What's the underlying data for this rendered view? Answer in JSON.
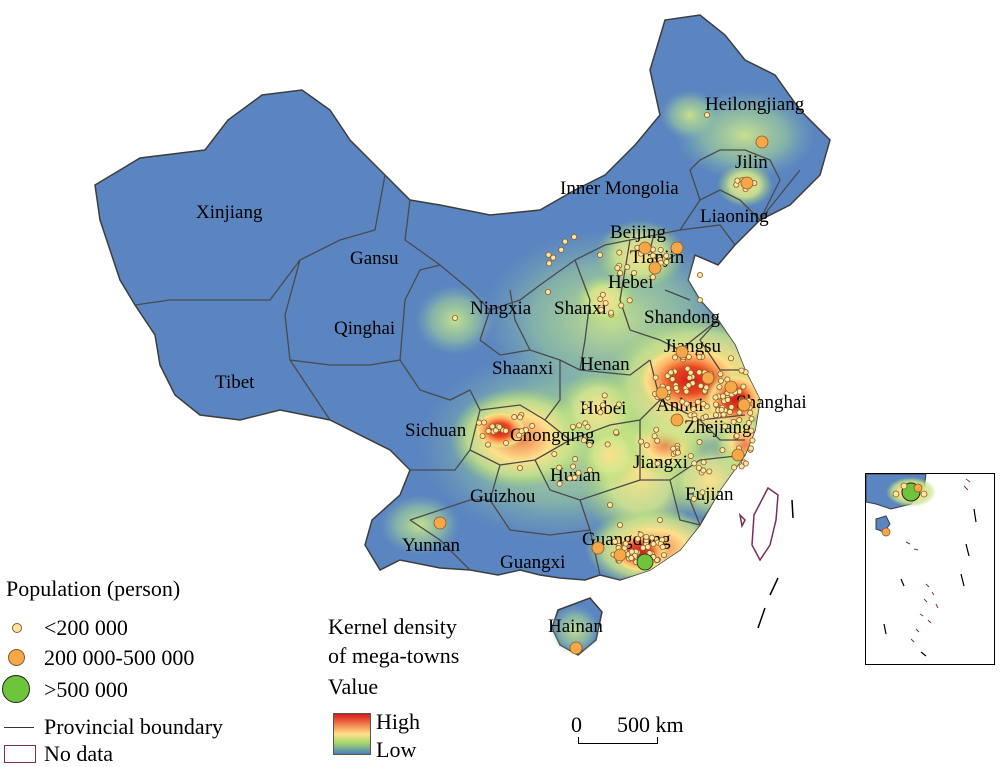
{
  "map": {
    "provinces": [
      {
        "id": "xinjiang",
        "label": "Xinjiang"
      },
      {
        "id": "tibet",
        "label": "Tibet"
      },
      {
        "id": "qinghai",
        "label": "Qinghai"
      },
      {
        "id": "gansu",
        "label": "Gansu"
      },
      {
        "id": "inner-mongolia",
        "label": "Inner Mongolia"
      },
      {
        "id": "heilongjiang",
        "label": "Heilongjiang"
      },
      {
        "id": "jilin",
        "label": "Jilin"
      },
      {
        "id": "liaoning",
        "label": "Liaoning"
      },
      {
        "id": "beijing",
        "label": "Beijing"
      },
      {
        "id": "tianjin",
        "label": "Tianjin"
      },
      {
        "id": "hebei",
        "label": "Hebei"
      },
      {
        "id": "ningxia",
        "label": "Ningxia"
      },
      {
        "id": "shanxi",
        "label": "Shanxi"
      },
      {
        "id": "shandong",
        "label": "Shandong"
      },
      {
        "id": "shaanxi",
        "label": "Shaanxi"
      },
      {
        "id": "henan",
        "label": "Henan"
      },
      {
        "id": "jiangsu",
        "label": "Jiangsu"
      },
      {
        "id": "shanghai",
        "label": "Shanghai"
      },
      {
        "id": "anhui",
        "label": "Anhui"
      },
      {
        "id": "hubei",
        "label": "Hubei"
      },
      {
        "id": "sichuan",
        "label": "Sichuan"
      },
      {
        "id": "chongqing",
        "label": "Chongqing"
      },
      {
        "id": "zhejiang",
        "label": "Zhejiang"
      },
      {
        "id": "hunan",
        "label": "Hunan"
      },
      {
        "id": "jiangxi",
        "label": "Jiangxi"
      },
      {
        "id": "guizhou",
        "label": "Guizhou"
      },
      {
        "id": "fujian",
        "label": "Fujian"
      },
      {
        "id": "yunnan",
        "label": "Yunnan"
      },
      {
        "id": "guangdong",
        "label": "Guangdong"
      },
      {
        "id": "guangxi",
        "label": "Guangxi"
      },
      {
        "id": "hainan",
        "label": "Hainan"
      }
    ],
    "colors": {
      "base": "#5b85c0",
      "boundary": "#4a4a4a",
      "high": "#d7191c",
      "mid": "#fee08b",
      "low_green": "#a6d96a",
      "no_data": "#7b2d5a"
    }
  },
  "legend": {
    "population": {
      "title": "Population (person)",
      "small": "<200 000",
      "medium": "200 000-500 000",
      "large": ">500 000",
      "boundary": "Provincial boundary",
      "no_data": "No data"
    },
    "kernel": {
      "title_line1": "Kernel density",
      "title_line2": "of mega-towns",
      "title_line3": "Value",
      "high": "High",
      "low": "Low"
    }
  },
  "scale_bar": {
    "start": "0",
    "end": "500 km"
  }
}
